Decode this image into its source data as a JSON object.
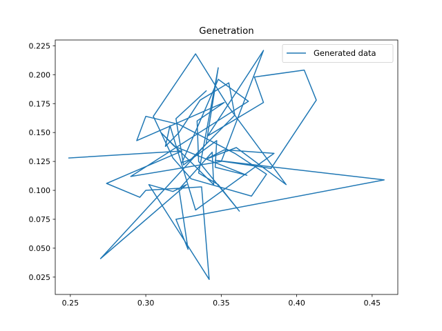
{
  "chart_data": {
    "type": "line",
    "title": "Genetration",
    "xlabel": "",
    "ylabel": "",
    "xlim": [
      0.24,
      0.467
    ],
    "ylim": [
      0.01,
      0.23
    ],
    "xticks": [
      0.25,
      0.3,
      0.35,
      0.4,
      0.45
    ],
    "xtick_labels": [
      "0.25",
      "0.30",
      "0.35",
      "0.40",
      "0.45"
    ],
    "yticks": [
      0.025,
      0.05,
      0.075,
      0.1,
      0.125,
      0.15,
      0.175,
      0.2,
      0.225
    ],
    "ytick_labels": [
      "0.025",
      "0.050",
      "0.075",
      "0.100",
      "0.125",
      "0.150",
      "0.175",
      "0.200",
      "0.225"
    ],
    "grid": false,
    "legend_position": "upper right",
    "colors": {
      "series": "#1f77b4",
      "axes": "#000000"
    },
    "series": [
      {
        "name": "Generated data",
        "x": [
          0.249,
          0.324,
          0.274,
          0.296,
          0.3,
          0.337,
          0.342,
          0.302,
          0.318,
          0.327,
          0.27,
          0.34,
          0.348,
          0.335,
          0.348,
          0.362,
          0.335,
          0.334,
          0.352,
          0.294,
          0.3,
          0.322,
          0.359,
          0.38,
          0.37,
          0.33,
          0.318,
          0.305,
          0.333,
          0.355,
          0.393,
          0.36,
          0.34,
          0.352,
          0.385,
          0.333,
          0.316,
          0.313,
          0.322,
          0.336,
          0.355,
          0.359,
          0.33,
          0.324,
          0.348,
          0.368,
          0.29,
          0.35,
          0.378,
          0.341,
          0.378,
          0.372,
          0.405,
          0.413,
          0.383,
          0.346,
          0.458,
          0.32,
          0.328,
          0.322,
          0.344,
          0.345,
          0.31,
          0.319,
          0.367,
          0.346,
          0.347,
          0.325,
          0.32,
          0.34
        ],
        "y": [
          0.128,
          0.134,
          0.106,
          0.094,
          0.1,
          0.103,
          0.023,
          0.105,
          0.099,
          0.105,
          0.041,
          0.14,
          0.206,
          0.115,
          0.105,
          0.082,
          0.125,
          0.16,
          0.176,
          0.143,
          0.164,
          0.157,
          0.132,
          0.114,
          0.095,
          0.11,
          0.128,
          0.164,
          0.218,
          0.172,
          0.105,
          0.137,
          0.127,
          0.135,
          0.132,
          0.083,
          0.156,
          0.138,
          0.15,
          0.178,
          0.193,
          0.165,
          0.127,
          0.124,
          0.196,
          0.177,
          0.112,
          0.125,
          0.221,
          0.147,
          0.176,
          0.198,
          0.204,
          0.178,
          0.119,
          0.126,
          0.109,
          0.075,
          0.049,
          0.101,
          0.133,
          0.105,
          0.15,
          0.138,
          0.113,
          0.12,
          0.143,
          0.122,
          0.162,
          0.186
        ]
      }
    ]
  }
}
